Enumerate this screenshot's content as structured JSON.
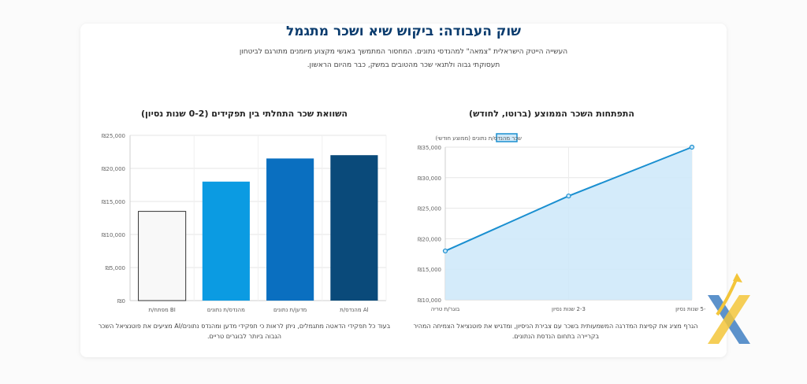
{
  "page": {
    "title": "שוק העבודה: ביקוש שיא ושכר מתגמל",
    "intro_line1": "העשייה הייטק הישראלית \"צמאה\" למהנדסי נתונים. המחסור המתמשך באנשי מקצוע מיומנים מתורגם לביטחון",
    "intro_line2": "תעסוקתי גבוה ולתנאי שכר מהטובים במשק, כבר מהיום הראשון."
  },
  "left": {
    "title": "השוואת שכר התחלתי בין תפקידים (0-2 שנות נסיון)",
    "caption_line1": "בעוד כל תפקידי הדאטה מתגמלים, ניתן לראות כי תפקידי מדען ומהנדס נתונים/AI מציעים את פוטנציאל השכר",
    "caption_line2": "הגבוה ביותר לבוגרים טריים."
  },
  "right": {
    "title": "התפתחות השכר הממוצע (ברוטו, לחודש)",
    "caption_line1": "הגרף מציג את קפיצת המדרגה המשמעותית בשכר עם צבירת הניסיון, ומדגיש את פוטנציאל הצמיחה המהיר",
    "caption_line2": "בקריירה בתחום הנדסת הנתונים."
  },
  "chart_data": [
    {
      "type": "bar",
      "title": "השוואת שכר התחלתי בין תפקידים (0-2 שנות נסיון)",
      "categories": [
        "Al מהנדס/ת",
        "מדען/ת נתונים",
        "מהנדס/ת נתונים",
        "BI מפתח/ת"
      ],
      "values": [
        22000,
        21500,
        18000,
        13500
      ],
      "colors": [
        "#0a4a7a",
        "#0a6fc0",
        "#0b9be2",
        "#f8f8f8"
      ],
      "ylim": [
        0,
        25000
      ],
      "yticks": [
        0,
        5000,
        10000,
        15000,
        20000,
        25000
      ],
      "ytick_labels": [
        "₪0",
        "₪5,000",
        "₪10,000",
        "₪15,000",
        "₪20,000",
        "₪25,000"
      ],
      "grid": true
    },
    {
      "type": "area",
      "title": "התפתחות השכר הממוצע (ברוטו, לחודש)",
      "categories": [
        "+5 שנות נסיון",
        "2-3 שנות נסיון",
        "בוגר/ת טריה"
      ],
      "series": [
        {
          "name": "שכר מהנדס/ת נתונים (ממוצע חודשי)",
          "values": [
            35000,
            27000,
            18000
          ]
        }
      ],
      "ylim": [
        10000,
        35000
      ],
      "yticks": [
        10000,
        15000,
        20000,
        25000,
        30000,
        35000
      ],
      "ytick_labels": [
        "₪10,000",
        "₪15,000",
        "₪20,000",
        "₪25,000",
        "₪30,000",
        "₪35,000"
      ],
      "line_color": "#1a8fd0",
      "fill_color": "#cfe9f9",
      "legend_position": "top",
      "grid": true
    }
  ]
}
